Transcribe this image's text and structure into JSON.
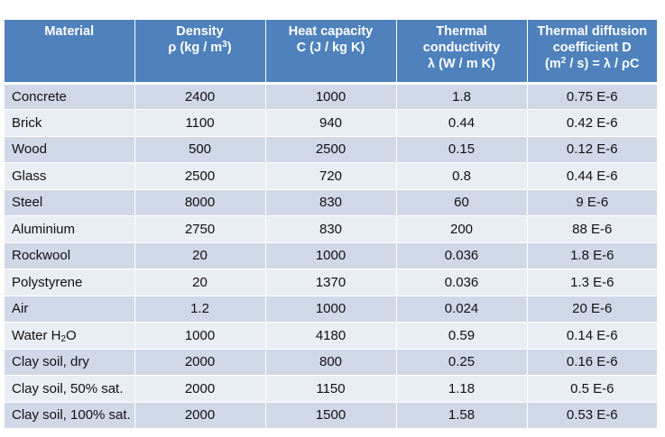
{
  "header": {
    "material": "Material",
    "density": {
      "line1": "Density",
      "line2_pre": "ρ  (kg / m",
      "line2_sup": "3",
      "line2_post": ")"
    },
    "heat_capacity": {
      "line1": "Heat capacity",
      "line2": "C (J / kg K)"
    },
    "thermal_conductivity": {
      "line1": "Thermal",
      "line2": "conductivity",
      "line3": "λ  (W / m K)"
    },
    "thermal_diffusion": {
      "line1": "Thermal diffusion",
      "line2": "coefficient D",
      "line3_pre": "(m",
      "line3_sup": "2",
      "line3_post": " / s) = λ / ρC"
    }
  },
  "rows": [
    {
      "material": "Concrete",
      "density": "2400",
      "heat_capacity": "1000",
      "conductivity": "1.8",
      "diffusion": "0.75 E-6"
    },
    {
      "material": "Brick",
      "density": "1100",
      "heat_capacity": "940",
      "conductivity": "0.44",
      "diffusion": "0.42 E-6"
    },
    {
      "material": "Wood",
      "density": "500",
      "heat_capacity": "2500",
      "conductivity": "0.15",
      "diffusion": "0.12 E-6"
    },
    {
      "material": "Glass",
      "density": "2500",
      "heat_capacity": "720",
      "conductivity": "0.8",
      "diffusion": "0.44 E-6"
    },
    {
      "material": "Steel",
      "density": "8000",
      "heat_capacity": "830",
      "conductivity": "60",
      "diffusion": "9 E-6"
    },
    {
      "material": "Aluminium",
      "density": "2750",
      "heat_capacity": "830",
      "conductivity": "200",
      "diffusion": "88 E-6"
    },
    {
      "material": "Rockwool",
      "density": "20",
      "heat_capacity": "1000",
      "conductivity": "0.036",
      "diffusion": "1.8 E-6"
    },
    {
      "material": "Polystyrene",
      "density": "20",
      "heat_capacity": "1370",
      "conductivity": "0.036",
      "diffusion": "1.3 E-6"
    },
    {
      "material": "Air",
      "density": "1.2",
      "heat_capacity": "1000",
      "conductivity": "0.024",
      "diffusion": "20 E-6"
    },
    {
      "material_pre": "Water H",
      "material_sub": "2",
      "material_post": "O",
      "density": "1000",
      "heat_capacity": "4180",
      "conductivity": "0.59",
      "diffusion": "0.14 E-6"
    },
    {
      "material": "Clay soil, dry",
      "density": "2000",
      "heat_capacity": "800",
      "conductivity": "0.25",
      "diffusion": "0.16 E-6"
    },
    {
      "material": "Clay soil, 50% sat.",
      "density": "2000",
      "heat_capacity": "1150",
      "conductivity": "1.18",
      "diffusion": "0.5 E-6"
    },
    {
      "material": "Clay soil, 100% sat.",
      "density": "2000",
      "heat_capacity": "1500",
      "conductivity": "1.58",
      "diffusion": "0.53 E-6"
    }
  ],
  "colors": {
    "header_bg": "#4f81bd",
    "row_odd": "#d0d8e8",
    "row_even": "#e9edf4"
  }
}
